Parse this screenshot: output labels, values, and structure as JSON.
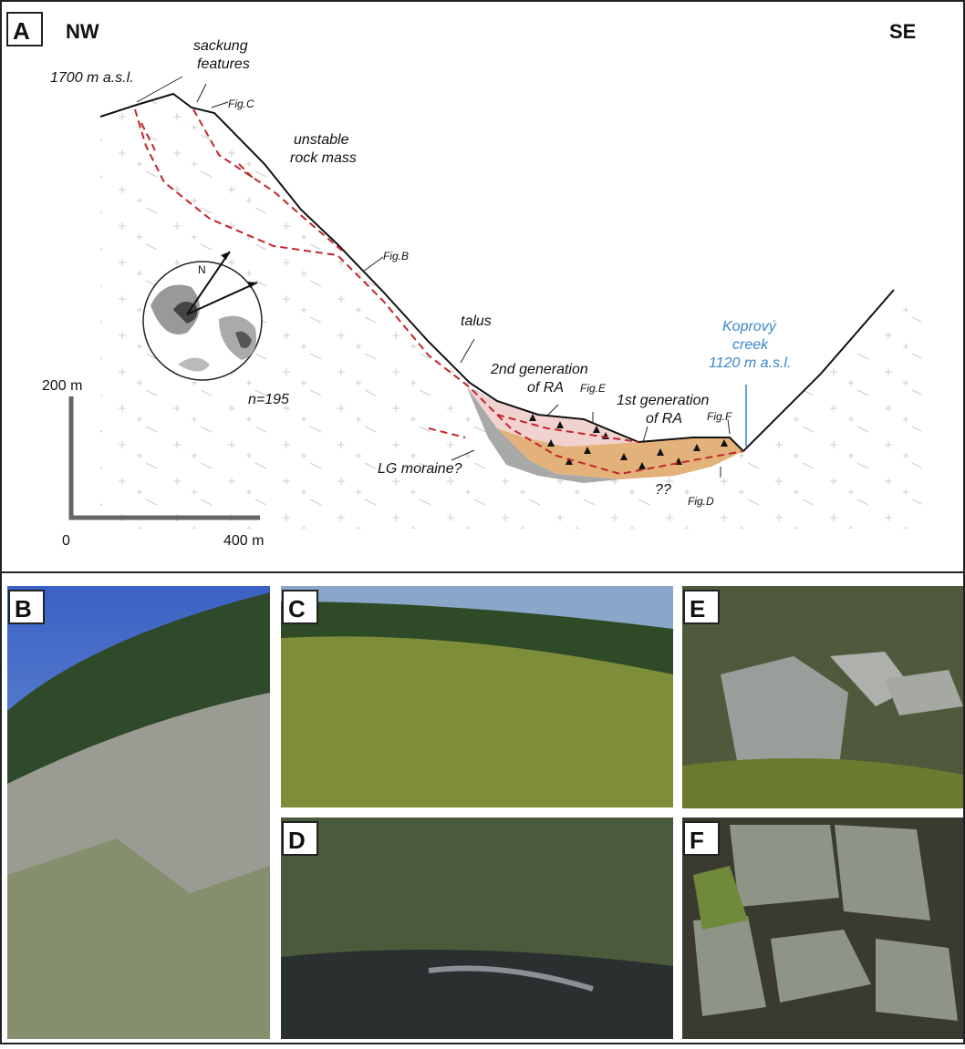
{
  "panel_a": {
    "label": "A",
    "left_label": "NW",
    "right_label": "SE",
    "elevation_top": "1700 m a.s.l.",
    "sackung": [
      "sackung",
      "features"
    ],
    "fig_c": "Fig.C",
    "unstable": [
      "unstable",
      "rock mass"
    ],
    "fig_b": "Fig.B",
    "north": "N",
    "count": "n=195",
    "talus": "talus",
    "second_gen": [
      "2nd generation",
      "of RA"
    ],
    "fig_e": "Fig.E",
    "first_gen": [
      "1st generation",
      "of RA"
    ],
    "fig_f": "Fig.F",
    "creek": [
      "Koprový",
      "creek",
      "1120 m a.s.l."
    ],
    "moraine": "LG moraine?",
    "unknown": "??",
    "fig_d": "Fig.D",
    "scale": {
      "vertical": "200 m",
      "origin": "0",
      "horizontal": "400 m"
    }
  },
  "photos": [
    {
      "label": "B"
    },
    {
      "label": "C"
    },
    {
      "label": "D"
    },
    {
      "label": "E"
    },
    {
      "label": "F"
    }
  ]
}
